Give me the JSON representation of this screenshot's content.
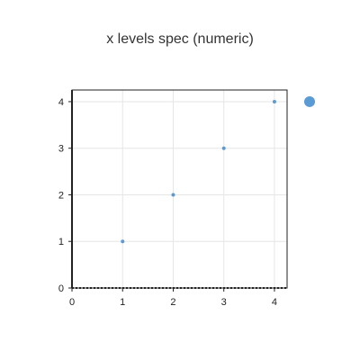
{
  "chart_data": {
    "type": "scatter",
    "title": "x levels spec (numeric)",
    "xlabel": "",
    "ylabel": "",
    "xlim": [
      0,
      4.25
    ],
    "ylim": [
      0,
      4.25
    ],
    "x_ticks": [
      0,
      1,
      2,
      3,
      4
    ],
    "y_ticks": [
      0,
      1,
      2,
      3,
      4
    ],
    "grid": true,
    "legend_position": "right",
    "series": [
      {
        "x": [
          1,
          2,
          3,
          4
        ],
        "y": [
          1,
          2,
          3,
          4
        ],
        "color": "#5b9bd5"
      }
    ]
  }
}
